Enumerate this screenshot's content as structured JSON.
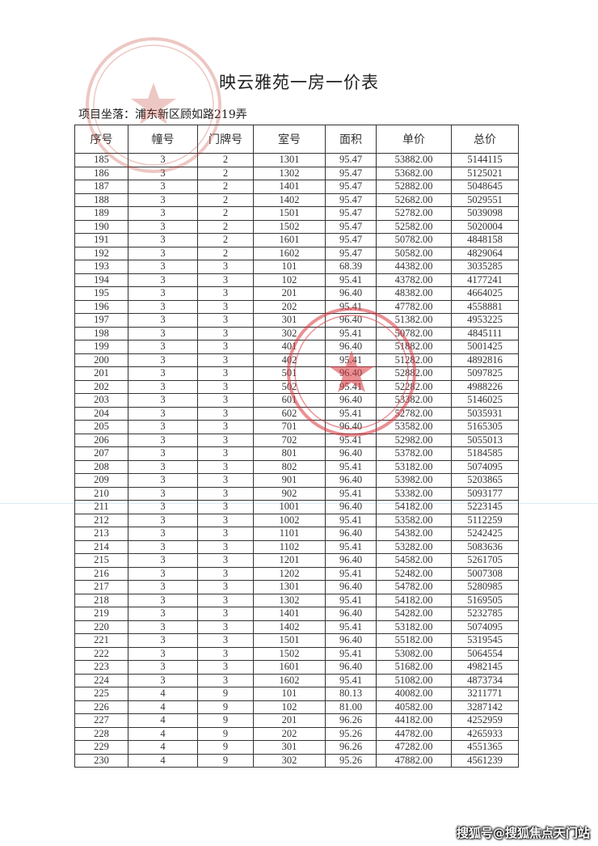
{
  "title": "映云雅苑一房一价表",
  "location": "项目坐落：浦东新区顾如路219弄",
  "columns": [
    "序号",
    "幢号",
    "门牌号",
    "室号",
    "面积",
    "单价",
    "总价"
  ],
  "rows": [
    [
      "185",
      "3",
      "2",
      "1301",
      "95.47",
      "53882.00",
      "5144115"
    ],
    [
      "186",
      "3",
      "2",
      "1302",
      "95.47",
      "53682.00",
      "5125021"
    ],
    [
      "187",
      "3",
      "2",
      "1401",
      "95.47",
      "52882.00",
      "5048645"
    ],
    [
      "188",
      "3",
      "2",
      "1402",
      "95.47",
      "52682.00",
      "5029551"
    ],
    [
      "189",
      "3",
      "2",
      "1501",
      "95.47",
      "52782.00",
      "5039098"
    ],
    [
      "190",
      "3",
      "2",
      "1502",
      "95.47",
      "52582.00",
      "5020004"
    ],
    [
      "191",
      "3",
      "2",
      "1601",
      "95.47",
      "50782.00",
      "4848158"
    ],
    [
      "192",
      "3",
      "2",
      "1602",
      "95.47",
      "50582.00",
      "4829064"
    ],
    [
      "193",
      "3",
      "3",
      "101",
      "68.39",
      "44382.00",
      "3035285"
    ],
    [
      "194",
      "3",
      "3",
      "102",
      "95.41",
      "43782.00",
      "4177241"
    ],
    [
      "195",
      "3",
      "3",
      "201",
      "96.40",
      "48382.00",
      "4664025"
    ],
    [
      "196",
      "3",
      "3",
      "202",
      "95.41",
      "47782.00",
      "4558881"
    ],
    [
      "197",
      "3",
      "3",
      "301",
      "96.40",
      "51382.00",
      "4953225"
    ],
    [
      "198",
      "3",
      "3",
      "302",
      "95.41",
      "50782.00",
      "4845111"
    ],
    [
      "199",
      "3",
      "3",
      "401",
      "96.40",
      "51882.00",
      "5001425"
    ],
    [
      "200",
      "3",
      "3",
      "402",
      "95.41",
      "51282.00",
      "4892816"
    ],
    [
      "201",
      "3",
      "3",
      "501",
      "96.40",
      "52882.00",
      "5097825"
    ],
    [
      "202",
      "3",
      "3",
      "502",
      "95.41",
      "52282.00",
      "4988226"
    ],
    [
      "203",
      "3",
      "3",
      "601",
      "96.40",
      "53382.00",
      "5146025"
    ],
    [
      "204",
      "3",
      "3",
      "602",
      "95.41",
      "52782.00",
      "5035931"
    ],
    [
      "205",
      "3",
      "3",
      "701",
      "96.40",
      "53582.00",
      "5165305"
    ],
    [
      "206",
      "3",
      "3",
      "702",
      "95.41",
      "52982.00",
      "5055013"
    ],
    [
      "207",
      "3",
      "3",
      "801",
      "96.40",
      "53782.00",
      "5184585"
    ],
    [
      "208",
      "3",
      "3",
      "802",
      "95.41",
      "53182.00",
      "5074095"
    ],
    [
      "209",
      "3",
      "3",
      "901",
      "96.40",
      "53982.00",
      "5203865"
    ],
    [
      "210",
      "3",
      "3",
      "902",
      "95.41",
      "53382.00",
      "5093177"
    ],
    [
      "211",
      "3",
      "3",
      "1001",
      "96.40",
      "54182.00",
      "5223145"
    ],
    [
      "212",
      "3",
      "3",
      "1002",
      "95.41",
      "53582.00",
      "5112259"
    ],
    [
      "213",
      "3",
      "3",
      "1101",
      "96.40",
      "54382.00",
      "5242425"
    ],
    [
      "214",
      "3",
      "3",
      "1102",
      "95.41",
      "53282.00",
      "5083636"
    ],
    [
      "215",
      "3",
      "3",
      "1201",
      "96.40",
      "54582.00",
      "5261705"
    ],
    [
      "216",
      "3",
      "3",
      "1202",
      "95.41",
      "52482.00",
      "5007308"
    ],
    [
      "217",
      "3",
      "3",
      "1301",
      "96.40",
      "54782.00",
      "5280985"
    ],
    [
      "218",
      "3",
      "3",
      "1302",
      "95.41",
      "54182.00",
      "5169505"
    ],
    [
      "219",
      "3",
      "3",
      "1401",
      "96.40",
      "54282.00",
      "5232785"
    ],
    [
      "220",
      "3",
      "3",
      "1402",
      "95.41",
      "53182.00",
      "5074095"
    ],
    [
      "221",
      "3",
      "3",
      "1501",
      "96.40",
      "55182.00",
      "5319545"
    ],
    [
      "222",
      "3",
      "3",
      "1502",
      "95.41",
      "53082.00",
      "5064554"
    ],
    [
      "223",
      "3",
      "3",
      "1601",
      "96.40",
      "51682.00",
      "4982145"
    ],
    [
      "224",
      "3",
      "3",
      "1602",
      "95.41",
      "51082.00",
      "4873734"
    ],
    [
      "225",
      "4",
      "9",
      "101",
      "80.13",
      "40082.00",
      "3211771"
    ],
    [
      "226",
      "4",
      "9",
      "102",
      "81.00",
      "40582.00",
      "3287142"
    ],
    [
      "227",
      "4",
      "9",
      "201",
      "96.26",
      "44182.00",
      "4252959"
    ],
    [
      "228",
      "4",
      "9",
      "202",
      "95.26",
      "44782.00",
      "4265933"
    ],
    [
      "229",
      "4",
      "9",
      "301",
      "96.26",
      "47282.00",
      "4551365"
    ],
    [
      "230",
      "4",
      "9",
      "302",
      "95.26",
      "47882.00",
      "4561239"
    ]
  ],
  "watermark": "搜狐号@搜狐焦点天门站",
  "colors": {
    "stamp": "#d9363e",
    "ink": "#333333"
  }
}
